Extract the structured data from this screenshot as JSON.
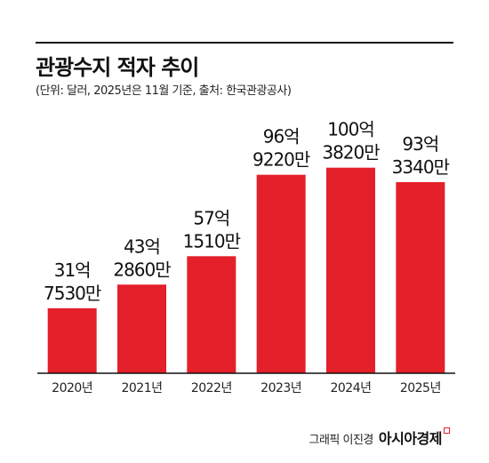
{
  "header": {
    "title": "관광수지 적자 추이",
    "subtitle": "(단위: 달러, 2025년은 11월 기준, 출처: 한국관광공사)"
  },
  "credit": {
    "author": "그래픽 이진경",
    "publisher": "아시아경제"
  },
  "colors": {
    "bar": "#e4202a",
    "axis": "#111111"
  },
  "chart_data": {
    "type": "bar",
    "title": "관광수지 적자 추이",
    "subtitle": "(단위: 달러, 2025년은 11월 기준, 출처: 한국관광공사)",
    "categories": [
      "2020년",
      "2021년",
      "2022년",
      "2023년",
      "2024년",
      "2025년"
    ],
    "values": [
      3175300000,
      4328600000,
      5715100000,
      9692200000,
      10038200000,
      9333400000
    ],
    "data_labels": [
      [
        "31억",
        "7530만"
      ],
      [
        "43억",
        "2860만"
      ],
      [
        "57억",
        "1510만"
      ],
      [
        "96억",
        "9220만"
      ],
      [
        "100억",
        "3820만"
      ],
      [
        "93억",
        "3340만"
      ]
    ],
    "ylim": [
      0,
      11500000000
    ],
    "grid": false,
    "legend": "none"
  }
}
